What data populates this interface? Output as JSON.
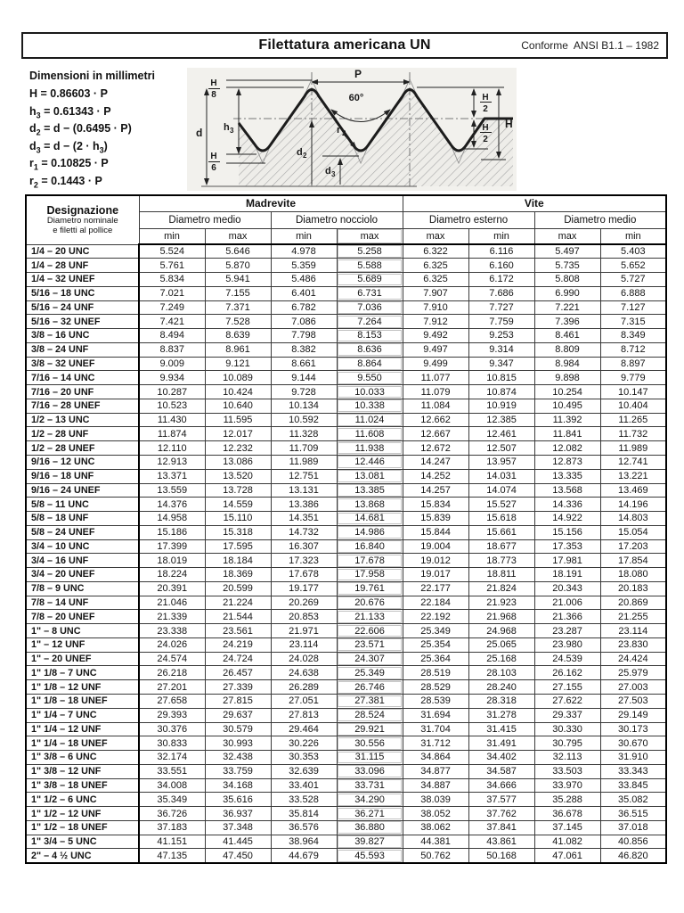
{
  "page": {
    "title": "Filettatura americana UN",
    "conformity": "Conforme  ANSI B1.1 – 1982",
    "units_note": "Dimensioni in millimetri"
  },
  "formulas": [
    {
      "parts": [
        {
          "t": "H = 0.86603 · P"
        }
      ]
    },
    {
      "parts": [
        {
          "t": "h"
        },
        {
          "t": "3",
          "sub": true
        },
        {
          "t": " = 0.61343 · P"
        }
      ]
    },
    {
      "parts": [
        {
          "t": "d"
        },
        {
          "t": "2",
          "sub": true
        },
        {
          "t": " = d − (0.6495 · P)"
        }
      ]
    },
    {
      "parts": [
        {
          "t": "d"
        },
        {
          "t": "3",
          "sub": true
        },
        {
          "t": " = d − (2 · h"
        },
        {
          "t": "3",
          "sub": true
        },
        {
          "t": ")"
        }
      ]
    },
    {
      "parts": [
        {
          "t": "r"
        },
        {
          "t": "1",
          "sub": true
        },
        {
          "t": " = 0.10825 · P"
        }
      ]
    },
    {
      "parts": [
        {
          "t": "r"
        },
        {
          "t": "2",
          "sub": true
        },
        {
          "t": " = 0.1443 · P"
        }
      ]
    }
  ],
  "diagram": {
    "p": "P",
    "angle": "60°",
    "d": "d",
    "h": "H",
    "h8": {
      "num": "H",
      "den": "8"
    },
    "h6": {
      "num": "H",
      "den": "6"
    },
    "h2a": {
      "num": "H",
      "den": "2"
    },
    "h2b": {
      "num": "H",
      "den": "2"
    },
    "h3": {
      "base": "h",
      "sub": "3"
    },
    "d2": {
      "base": "d",
      "sub": "2"
    },
    "d3": {
      "base": "d",
      "sub": "3"
    },
    "r2": {
      "base": "r",
      "sub": "2"
    },
    "colors": {
      "profile": "#1c1c1c",
      "hatch": "#a8a8a8",
      "background": "#f2f1ed",
      "dimension": "#222222"
    }
  },
  "table": {
    "designazione": {
      "title": "Designazione",
      "line2": "Diametro nominale",
      "line3": "e filetti al pollice"
    },
    "top_headers": {
      "madrevite": "Madrevite",
      "vite": "Vite"
    },
    "sub_headers": {
      "madrevite_medio": "Diametro medio",
      "madrevite_nocciolo": "Diametro nocciolo",
      "vite_esterno": "Diametro esterno",
      "vite_medio": "Diametro medio"
    },
    "minmax": [
      "min",
      "max",
      "min",
      "max",
      "max",
      "min",
      "max",
      "min"
    ],
    "rows": [
      {
        "label": "1/4 – 20 UNC",
        "values": [
          "5.524",
          "5.646",
          "4.978",
          "5.258",
          "6.322",
          "6.116",
          "5.497",
          "5.403"
        ]
      },
      {
        "label": "1/4 – 28 UNF",
        "values": [
          "5.761",
          "5.870",
          "5.359",
          "5.588",
          "6.325",
          "6.160",
          "5.735",
          "5.652"
        ]
      },
      {
        "label": "1/4 – 32 UNEF",
        "values": [
          "5.834",
          "5.941",
          "5.486",
          "5.689",
          "6.325",
          "6.172",
          "5.808",
          "5.727"
        ]
      },
      {
        "label": "5/16 – 18 UNC",
        "values": [
          "7.021",
          "7.155",
          "6.401",
          "6.731",
          "7.907",
          "7.686",
          "6.990",
          "6.888"
        ]
      },
      {
        "label": "5/16 – 24 UNF",
        "values": [
          "7.249",
          "7.371",
          "6.782",
          "7.036",
          "7.910",
          "7.727",
          "7.221",
          "7.127"
        ]
      },
      {
        "label": "5/16 – 32 UNEF",
        "values": [
          "7.421",
          "7.528",
          "7.086",
          "7.264",
          "7.912",
          "7.759",
          "7.396",
          "7.315"
        ]
      },
      {
        "label": "3/8 – 16 UNC",
        "values": [
          "8.494",
          "8.639",
          "7.798",
          "8.153",
          "9.492",
          "9.253",
          "8.461",
          "8.349"
        ]
      },
      {
        "label": "3/8 – 24 UNF",
        "values": [
          "8.837",
          "8.961",
          "8.382",
          "8.636",
          "9.497",
          "9.314",
          "8.809",
          "8.712"
        ]
      },
      {
        "label": "3/8 – 32 UNEF",
        "values": [
          "9.009",
          "9.121",
          "8.661",
          "8.864",
          "9.499",
          "9.347",
          "8.984",
          "8.897"
        ]
      },
      {
        "label": "7/16 – 14 UNC",
        "values": [
          "9.934",
          "10.089",
          "9.144",
          "9.550",
          "11.077",
          "10.815",
          "9.898",
          "9.779"
        ]
      },
      {
        "label": "7/16 – 20 UNF",
        "values": [
          "10.287",
          "10.424",
          "9.728",
          "10.033",
          "11.079",
          "10.874",
          "10.254",
          "10.147"
        ]
      },
      {
        "label": "7/16 – 28 UNEF",
        "values": [
          "10.523",
          "10.640",
          "10.134",
          "10.338",
          "11.084",
          "10.919",
          "10.495",
          "10.404"
        ]
      },
      {
        "label": "1/2 – 13 UNC",
        "values": [
          "11.430",
          "11.595",
          "10.592",
          "11.024",
          "12.662",
          "12.385",
          "11.392",
          "11.265"
        ]
      },
      {
        "label": "1/2 – 28 UNF",
        "values": [
          "11.874",
          "12.017",
          "11.328",
          "11.608",
          "12.667",
          "12.461",
          "11.841",
          "11.732"
        ]
      },
      {
        "label": "1/2 – 28 UNEF",
        "values": [
          "12.110",
          "12.232",
          "11.709",
          "11.938",
          "12.672",
          "12.507",
          "12.082",
          "11.989"
        ]
      },
      {
        "label": "9/16 – 12 UNC",
        "values": [
          "12.913",
          "13.086",
          "11.989",
          "12.446",
          "14.247",
          "13.957",
          "12.873",
          "12.741"
        ]
      },
      {
        "label": "9/16 – 18 UNF",
        "values": [
          "13.371",
          "13.520",
          "12.751",
          "13.081",
          "14.252",
          "14.031",
          "13.335",
          "13.221"
        ]
      },
      {
        "label": "9/16 – 24 UNEF",
        "values": [
          "13.559",
          "13.728",
          "13.131",
          "13.385",
          "14.257",
          "14.074",
          "13.568",
          "13.469"
        ]
      },
      {
        "label": "5/8 – 11 UNC",
        "values": [
          "14.376",
          "14.559",
          "13.386",
          "13.868",
          "15.834",
          "15.527",
          "14.336",
          "14.196"
        ]
      },
      {
        "label": "5/8 – 18 UNF",
        "values": [
          "14.958",
          "15.110",
          "14.351",
          "14.681",
          "15.839",
          "15.618",
          "14.922",
          "14.803"
        ]
      },
      {
        "label": "5/8 – 24 UNEF",
        "values": [
          "15.186",
          "15.318",
          "14.732",
          "14.986",
          "15.844",
          "15.661",
          "15.156",
          "15.054"
        ]
      },
      {
        "label": "3/4 – 10 UNC",
        "values": [
          "17.399",
          "17.595",
          "16.307",
          "16.840",
          "19.004",
          "18.677",
          "17.353",
          "17.203"
        ]
      },
      {
        "label": "3/4 – 16 UNF",
        "values": [
          "18.019",
          "18.184",
          "17.323",
          "17.678",
          "19.012",
          "18.773",
          "17.981",
          "17.854"
        ]
      },
      {
        "label": "3/4 – 20 UNEF",
        "values": [
          "18.224",
          "18.369",
          "17.678",
          "17.958",
          "19.017",
          "18.811",
          "18.191",
          "18.080"
        ]
      },
      {
        "label": "7/8 – 9 UNC",
        "values": [
          "20.391",
          "20.599",
          "19.177",
          "19.761",
          "22.177",
          "21.824",
          "20.343",
          "20.183"
        ]
      },
      {
        "label": "7/8 – 14 UNF",
        "values": [
          "21.046",
          "21.224",
          "20.269",
          "20.676",
          "22.184",
          "21.923",
          "21.006",
          "20.869"
        ]
      },
      {
        "label": "7/8 – 20 UNEF",
        "values": [
          "21.339",
          "21.544",
          "20.853",
          "21.133",
          "22.192",
          "21.968",
          "21.366",
          "21.255"
        ]
      },
      {
        "label": "1\" – 8 UNC",
        "values": [
          "23.338",
          "23.561",
          "21.971",
          "22.606",
          "25.349",
          "24.968",
          "23.287",
          "23.114"
        ]
      },
      {
        "label": "1\" – 12 UNF",
        "values": [
          "24.026",
          "24.219",
          "23.114",
          "23.571",
          "25.354",
          "25.065",
          "23.980",
          "23.830"
        ]
      },
      {
        "label": "1\" – 20 UNEF",
        "values": [
          "24.574",
          "24.724",
          "24.028",
          "24.307",
          "25.364",
          "25.168",
          "24.539",
          "24.424"
        ]
      },
      {
        "label": "1\" 1/8 – 7 UNC",
        "values": [
          "26.218",
          "26.457",
          "24.638",
          "25.349",
          "28.519",
          "28.103",
          "26.162",
          "25.979"
        ]
      },
      {
        "label": "1\" 1/8 – 12 UNF",
        "values": [
          "27.201",
          "27.339",
          "26.289",
          "26.746",
          "28.529",
          "28.240",
          "27.155",
          "27.003"
        ]
      },
      {
        "label": "1\" 1/8 – 18 UNEF",
        "values": [
          "27.658",
          "27.815",
          "27.051",
          "27.381",
          "28.539",
          "28.318",
          "27.622",
          "27.503"
        ]
      },
      {
        "label": "1\" 1/4 – 7 UNC",
        "values": [
          "29.393",
          "29.637",
          "27.813",
          "28.524",
          "31.694",
          "31.278",
          "29.337",
          "29.149"
        ]
      },
      {
        "label": "1\" 1/4 – 12 UNF",
        "values": [
          "30.376",
          "30.579",
          "29.464",
          "29.921",
          "31.704",
          "31.415",
          "30.330",
          "30.173"
        ]
      },
      {
        "label": "1\" 1/4 – 18 UNEF",
        "values": [
          "30.833",
          "30.993",
          "30.226",
          "30.556",
          "31.712",
          "31.491",
          "30.795",
          "30.670"
        ]
      },
      {
        "label": "1\" 3/8 – 6 UNC",
        "values": [
          "32.174",
          "32.438",
          "30.353",
          "31.115",
          "34.864",
          "34.402",
          "32.113",
          "31.910"
        ]
      },
      {
        "label": "1\" 3/8 – 12 UNF",
        "values": [
          "33.551",
          "33.759",
          "32.639",
          "33.096",
          "34.877",
          "34.587",
          "33.503",
          "33.343"
        ]
      },
      {
        "label": "1\" 3/8 – 18 UNEF",
        "values": [
          "34.008",
          "34.168",
          "33.401",
          "33.731",
          "34.887",
          "34.666",
          "33.970",
          "33.845"
        ]
      },
      {
        "label": "1\" 1/2 – 6 UNC",
        "values": [
          "35.349",
          "35.616",
          "33.528",
          "34.290",
          "38.039",
          "37.577",
          "35.288",
          "35.082"
        ]
      },
      {
        "label": "1\" 1/2 – 12 UNF",
        "values": [
          "36.726",
          "36.937",
          "35.814",
          "36.271",
          "38.052",
          "37.762",
          "36.678",
          "36.515"
        ]
      },
      {
        "label": "1\" 1/2 – 18 UNEF",
        "values": [
          "37.183",
          "37.348",
          "36.576",
          "36.880",
          "38.062",
          "37.841",
          "37.145",
          "37.018"
        ]
      },
      {
        "label": "1\" 3/4 – 5 UNC",
        "values": [
          "41.151",
          "41.445",
          "38.964",
          "39.827",
          "44.381",
          "43.861",
          "41.082",
          "40.856"
        ]
      },
      {
        "label": "2\" – 4 ½ UNC",
        "values": [
          "47.135",
          "47.450",
          "44.679",
          "45.593",
          "50.762",
          "50.168",
          "47.061",
          "46.820"
        ]
      }
    ]
  }
}
